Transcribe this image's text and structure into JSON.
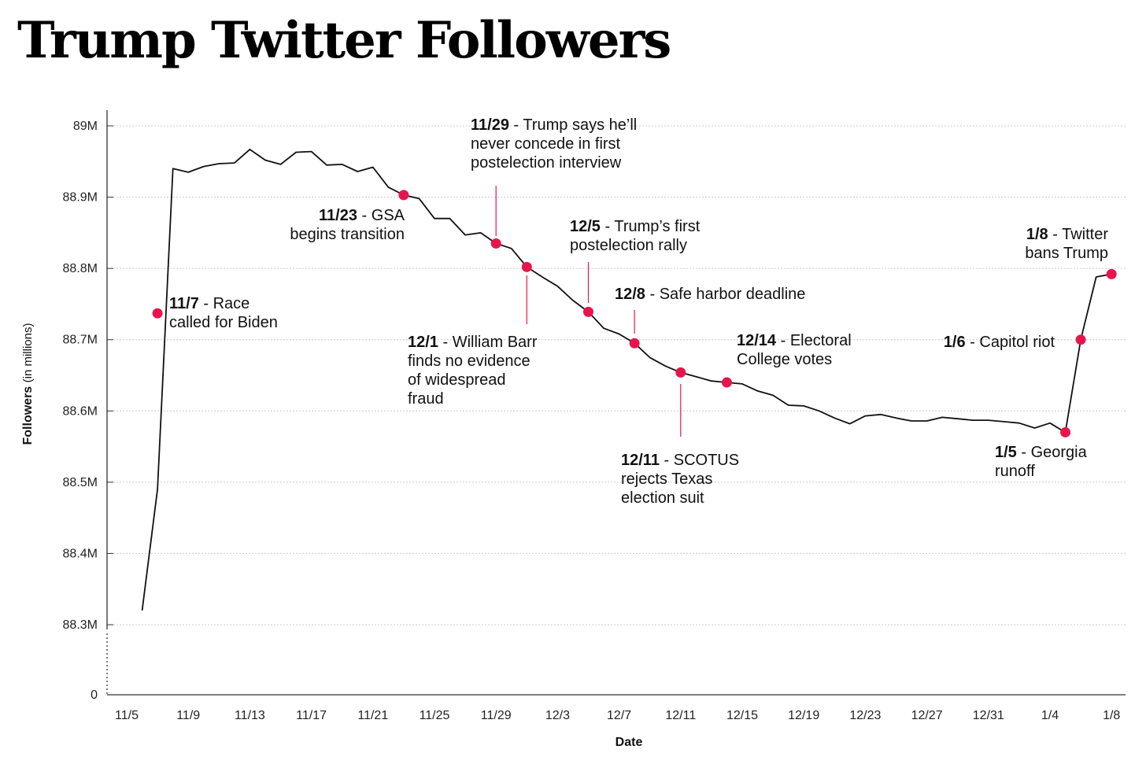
{
  "title": "Trump Twitter Followers",
  "colors": {
    "line": "#111111",
    "marker": "#e8154d",
    "grid": "#cccccc"
  },
  "chart_data": {
    "type": "line",
    "title": "Trump Twitter Followers",
    "xlabel": "Date",
    "ylabel": "Followers",
    "ylabel_unit": "(in millions)",
    "y_tick_labels": [
      "0",
      "88.3M",
      "88.4M",
      "88.5M",
      "88.6M",
      "88.7M",
      "88.8M",
      "88.9M",
      "89M"
    ],
    "x_tick_labels": [
      "11/5",
      "11/9",
      "11/13",
      "11/17",
      "11/21",
      "11/25",
      "11/29",
      "12/3",
      "12/7",
      "12/11",
      "12/15",
      "12/19",
      "12/23",
      "12/27",
      "12/31",
      "1/4",
      "1/8"
    ],
    "ylim": [
      88.3,
      89.0
    ],
    "axis_break": true,
    "grid": "horizontal",
    "series": [
      {
        "points": [
          [
            "11/6",
            88.32
          ],
          [
            "11/7",
            88.49
          ],
          [
            "11/8",
            88.94
          ],
          [
            "11/9",
            88.935
          ],
          [
            "11/10",
            88.943
          ],
          [
            "11/11",
            88.947
          ],
          [
            "11/12",
            88.948
          ],
          [
            "11/13",
            88.967
          ],
          [
            "11/14",
            88.952
          ],
          [
            "11/15",
            88.946
          ],
          [
            "11/16",
            88.963
          ],
          [
            "11/17",
            88.964
          ],
          [
            "11/18",
            88.945
          ],
          [
            "11/19",
            88.946
          ],
          [
            "11/20",
            88.936
          ],
          [
            "11/21",
            88.942
          ],
          [
            "11/22",
            88.914
          ],
          [
            "11/23",
            88.903
          ],
          [
            "11/24",
            88.898
          ],
          [
            "11/25",
            88.87
          ],
          [
            "11/26",
            88.87
          ],
          [
            "11/27",
            88.847
          ],
          [
            "11/28",
            88.85
          ],
          [
            "11/29",
            88.835
          ],
          [
            "11/30",
            88.828
          ],
          [
            "12/1",
            88.802
          ],
          [
            "12/2",
            88.788
          ],
          [
            "12/3",
            88.775
          ],
          [
            "12/4",
            88.755
          ],
          [
            "12/5",
            88.739
          ],
          [
            "12/6",
            88.716
          ],
          [
            "12/7",
            88.708
          ],
          [
            "12/8",
            88.695
          ],
          [
            "12/9",
            88.675
          ],
          [
            "12/10",
            88.663
          ],
          [
            "12/11",
            88.654
          ],
          [
            "12/12",
            88.648
          ],
          [
            "12/13",
            88.642
          ],
          [
            "12/14",
            88.64
          ],
          [
            "12/15",
            88.638
          ],
          [
            "12/16",
            88.628
          ],
          [
            "12/17",
            88.622
          ],
          [
            "12/18",
            88.608
          ],
          [
            "12/19",
            88.607
          ],
          [
            "12/20",
            88.6
          ],
          [
            "12/21",
            88.59
          ],
          [
            "12/22",
            88.582
          ],
          [
            "12/23",
            88.593
          ],
          [
            "12/24",
            88.595
          ],
          [
            "12/25",
            88.59
          ],
          [
            "12/26",
            88.586
          ],
          [
            "12/27",
            88.586
          ],
          [
            "12/28",
            88.591
          ],
          [
            "12/29",
            88.589
          ],
          [
            "12/30",
            88.587
          ],
          [
            "12/31",
            88.587
          ],
          [
            "1/1",
            88.585
          ],
          [
            "1/2",
            88.583
          ],
          [
            "1/3",
            88.576
          ],
          [
            "1/4",
            88.583
          ],
          [
            "1/5",
            88.57
          ],
          [
            "1/6",
            88.7
          ],
          [
            "1/7",
            88.788
          ],
          [
            "1/8",
            88.792
          ]
        ]
      }
    ],
    "annotations": [
      {
        "date": "11/7",
        "y": 88.737,
        "label_bold": "11/7",
        "lines": [
          " - Race",
          "called for Biden"
        ]
      },
      {
        "date": "11/23",
        "y": 88.903,
        "label_bold": "11/23",
        "lines": [
          " - GSA",
          "begins transition"
        ]
      },
      {
        "date": "11/29",
        "y": 88.835,
        "label_bold": "11/29",
        "lines": [
          " - Trump says he’ll",
          "never concede in first",
          "postelection interview"
        ]
      },
      {
        "date": "12/1",
        "y": 88.802,
        "label_bold": "12/1",
        "lines": [
          " - William Barr",
          "finds no evidence",
          "of widespread",
          "fraud"
        ]
      },
      {
        "date": "12/5",
        "y": 88.739,
        "label_bold": "12/5",
        "lines": [
          " - Trump’s first",
          "postelection rally"
        ]
      },
      {
        "date": "12/8",
        "y": 88.695,
        "label_bold": "12/8",
        "lines": [
          " - Safe harbor deadline"
        ]
      },
      {
        "date": "12/11",
        "y": 88.654,
        "label_bold": "12/11",
        "lines": [
          " - SCOTUS",
          "rejects Texas",
          "election suit"
        ]
      },
      {
        "date": "12/14",
        "y": 88.64,
        "label_bold": "12/14",
        "lines": [
          " - Electoral",
          "College votes"
        ]
      },
      {
        "date": "1/5",
        "y": 88.57,
        "label_bold": "1/5",
        "lines": [
          " - Georgia",
          "runoff"
        ]
      },
      {
        "date": "1/6",
        "y": 88.7,
        "label_bold": "1/6",
        "lines": [
          " - Capitol riot"
        ]
      },
      {
        "date": "1/8",
        "y": 88.792,
        "label_bold": "1/8",
        "lines": [
          " - Twitter",
          "bans Trump"
        ]
      }
    ]
  }
}
